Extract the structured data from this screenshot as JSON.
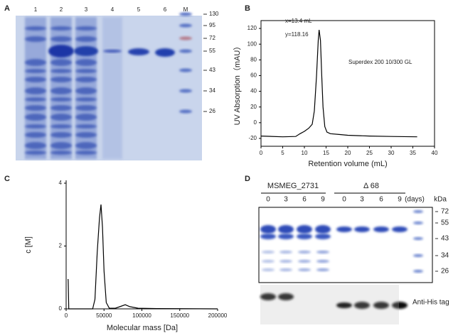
{
  "panels": [
    "A",
    "B",
    "C",
    "D"
  ],
  "gel_a": {
    "lanes": [
      "1",
      "2",
      "3",
      "4",
      "5",
      "6",
      "M"
    ],
    "markers": [
      "130",
      "95",
      "72",
      "55",
      "43",
      "34",
      "26"
    ]
  },
  "gel_d": {
    "groups": [
      "MSMEG_2731",
      "Δ 68"
    ],
    "days": [
      "0",
      "3",
      "6",
      "9",
      "0",
      "3",
      "6",
      "9"
    ],
    "days_label": "(days)",
    "unit": "kDa",
    "markers": [
      "72",
      "55",
      "43",
      "34",
      "26"
    ],
    "blot_label": "Anti-His tag"
  },
  "chart_data": [
    {
      "type": "line",
      "xlabel": "Retention volume (mL)",
      "ylabel": "UV Absorption（mAU）",
      "annotations": [
        "x=13.4 mL",
        "y=118.16",
        "Superdex 200 10/300 GL"
      ],
      "x": [
        0,
        5,
        8,
        9,
        10,
        11,
        11.8,
        12.3,
        12.8,
        13.2,
        13.4,
        13.7,
        14.0,
        14.3,
        14.7,
        15.2,
        16,
        18,
        20,
        25,
        30,
        36
      ],
      "series": [
        {
          "color": "#000000",
          "values": [
            -17,
            -18,
            -17.5,
            -14,
            -11,
            -7,
            -2,
            15,
            60,
            105,
            118.16,
            105,
            60,
            20,
            -5,
            -12,
            -14,
            -15,
            -16,
            -17,
            -17.5,
            -18
          ]
        }
      ],
      "xlim": [
        0,
        40
      ],
      "ylim": [
        -30,
        130
      ],
      "xticks": [
        0,
        5,
        10,
        15,
        20,
        25,
        30,
        35,
        40
      ],
      "yticks": [
        -20,
        0,
        20,
        40,
        60,
        80,
        100,
        120
      ],
      "frame": true
    },
    {
      "type": "line",
      "xlabel": "Molecular mass [Da]",
      "ylabel": "c [M]",
      "x": [
        2500,
        2700,
        3500,
        35000,
        38000,
        41000,
        44000,
        46000,
        48000,
        50000,
        53000,
        57000,
        65000,
        72000,
        78000,
        84000,
        95000,
        120000,
        200000
      ],
      "series": [
        {
          "color": "#000000",
          "values": [
            0.95,
            0.9,
            0,
            0,
            0.3,
            1.8,
            2.9,
            3.32,
            2.6,
            1.2,
            0.2,
            0.02,
            0.02,
            0.08,
            0.13,
            0.07,
            0.02,
            0.01,
            0
          ]
        }
      ],
      "xlim": [
        0,
        200000
      ],
      "ylim": [
        0,
        4
      ],
      "xticks": [
        0,
        50000,
        100000,
        150000,
        200000
      ],
      "yticks": [
        0,
        2,
        4
      ],
      "frame": false
    }
  ]
}
